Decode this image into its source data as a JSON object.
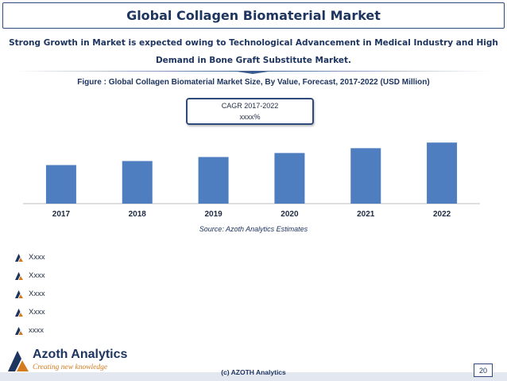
{
  "header": {
    "title": "Global Collagen Biomaterial Market",
    "subtitle_line1": "Strong Growth in Market is expected owing to Technological Advancement in Medical Industry and High",
    "subtitle_line2": "Demand in Bone Graft Substitute Market."
  },
  "figure": {
    "caption": "Figure : Global Collagen Biomaterial Market Size, By Value, Forecast, 2017-2022 (USD Million)",
    "cagr_label": "CAGR 2017-2022",
    "cagr_value": "xxxx%",
    "source": "Source: Azoth Analytics Estimates"
  },
  "chart_data": {
    "type": "bar",
    "categories": [
      "2017",
      "2018",
      "2019",
      "2020",
      "2021",
      "2022"
    ],
    "values": [
      48,
      53,
      58,
      63,
      69,
      76
    ],
    "title": "Figure : Global Collagen Biomaterial Market Size, By Value, Forecast, 2017-2022 (USD Million)",
    "xlabel": "",
    "ylabel": "",
    "ylim": [
      0,
      100
    ],
    "grid": false,
    "value_labels_shown": false,
    "bar_color": "#4f7ec0"
  },
  "bullets": [
    "Xxxx",
    "Xxxx",
    "Xxxx",
    "Xxxx",
    "xxxx"
  ],
  "footer": {
    "brand": "Azoth Analytics",
    "tagline": "Creating new knowledge",
    "copyright": "(c) AZOTH Analytics",
    "page_number": "20"
  },
  "colors": {
    "primary": "#1e3560",
    "accent": "#d47b1e",
    "bar": "#4f7ec0"
  },
  "icons": {
    "bullet": "azoth-a-icon",
    "logo": "azoth-logo-icon"
  }
}
